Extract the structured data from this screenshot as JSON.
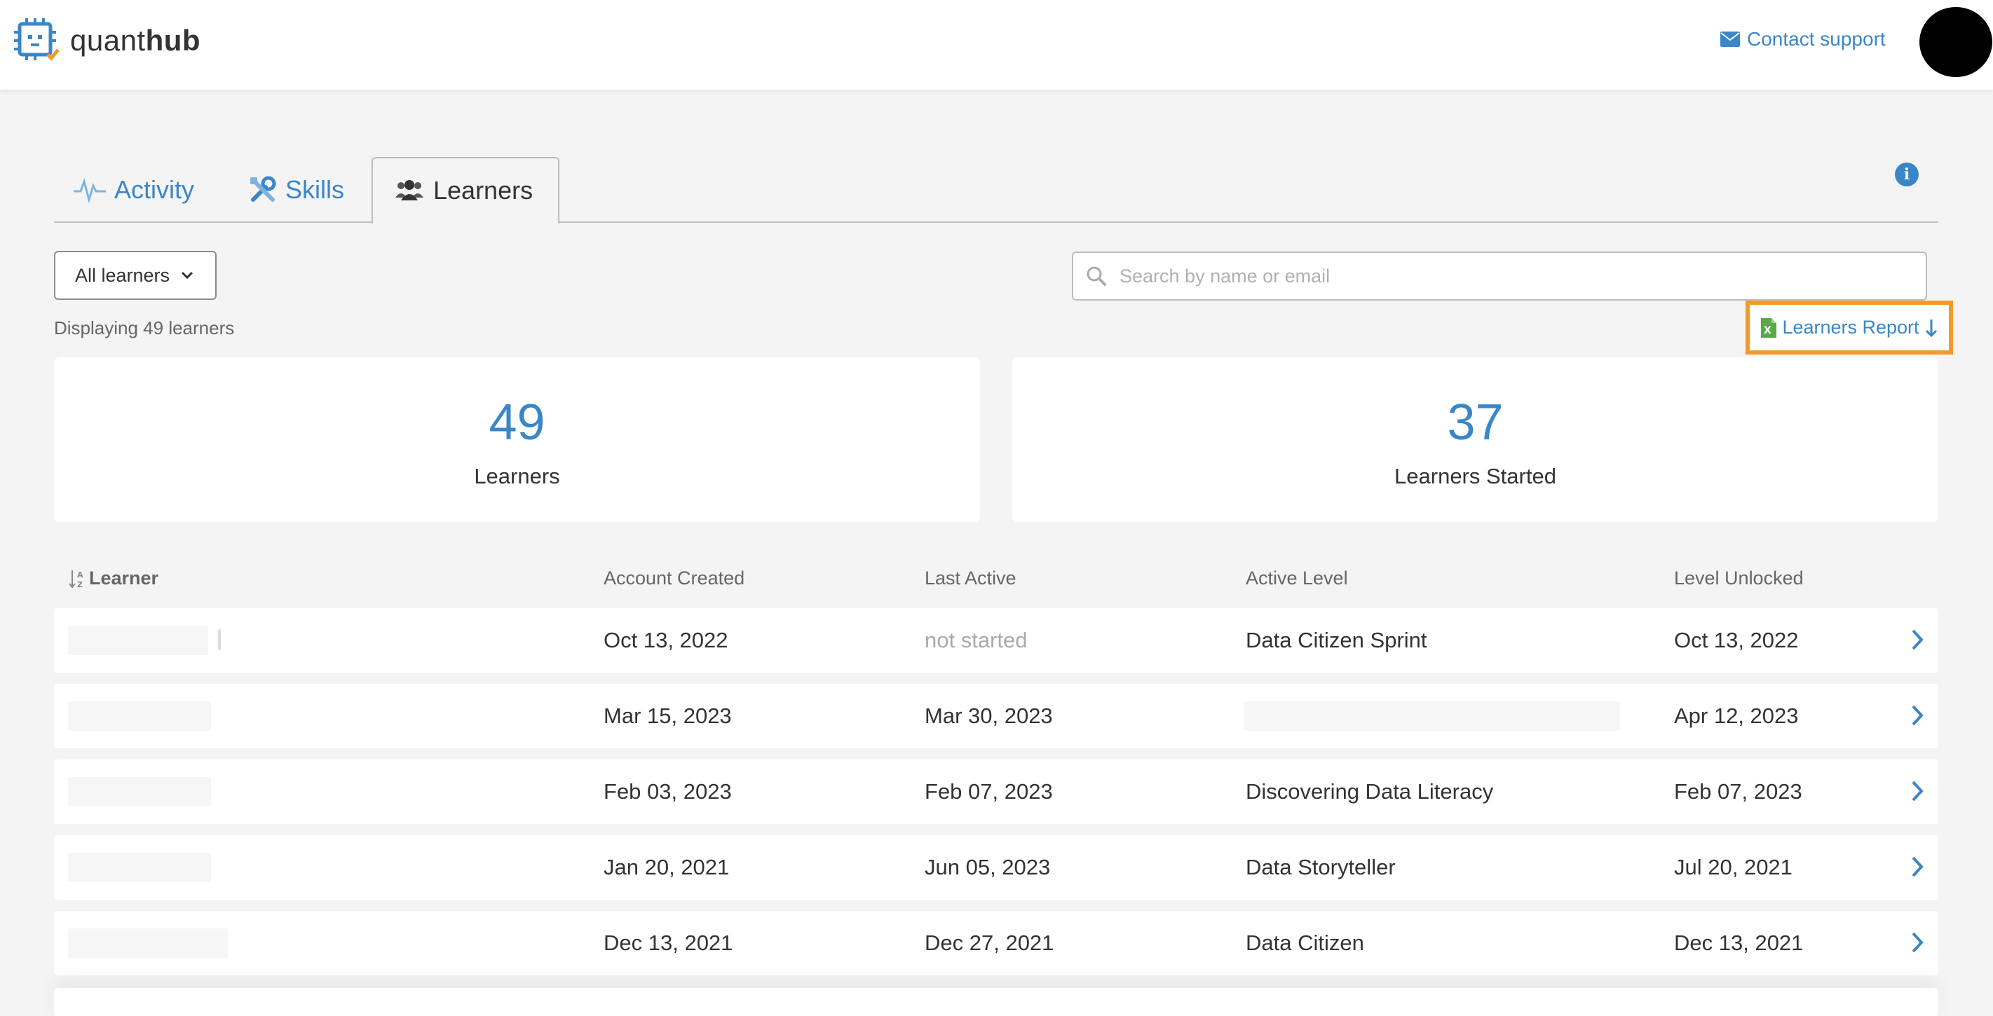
{
  "brand": {
    "name_light": "quant",
    "name_bold": "hub"
  },
  "header": {
    "contact_label": "Contact support"
  },
  "tabs": [
    {
      "label": "Activity",
      "icon": "pulse-icon"
    },
    {
      "label": "Skills",
      "icon": "tools-icon"
    },
    {
      "label": "Learners",
      "icon": "users-icon",
      "active": true
    }
  ],
  "filters": {
    "dropdown_value": "All learners",
    "search_placeholder": "Search by name or email"
  },
  "summary": {
    "displaying_text": "Displaying 49 learners",
    "report_label": "Learners Report"
  },
  "stats": [
    {
      "value": "49",
      "label": "Learners"
    },
    {
      "value": "37",
      "label": "Learners Started"
    }
  ],
  "table": {
    "columns": [
      "Learner",
      "Account Created",
      "Last Active",
      "Active Level",
      "Level Unlocked"
    ],
    "rows": [
      {
        "created": "Oct 13, 2022",
        "last_active": "not started",
        "level": "Data Citizen Sprint",
        "unlocked": "Oct 13, 2022"
      },
      {
        "created": "Mar 15, 2023",
        "last_active": "Mar 30, 2023",
        "level": "",
        "unlocked": "Apr 12, 2023"
      },
      {
        "created": "Feb 03, 2023",
        "last_active": "Feb 07, 2023",
        "level": "Discovering Data Literacy",
        "unlocked": "Feb 07, 2023"
      },
      {
        "created": "Jan 20, 2021",
        "last_active": "Jun 05, 2023",
        "level": "Data Storyteller",
        "unlocked": "Jul 20, 2021"
      },
      {
        "created": "Dec 13, 2021",
        "last_active": "Dec 27, 2021",
        "level": "Data Citizen",
        "unlocked": "Dec 13, 2021"
      }
    ]
  },
  "colors": {
    "accent": "#3a86c8",
    "highlight": "#f39a2b",
    "excel_green": "#5aa84a",
    "background": "#f4f4f4"
  }
}
